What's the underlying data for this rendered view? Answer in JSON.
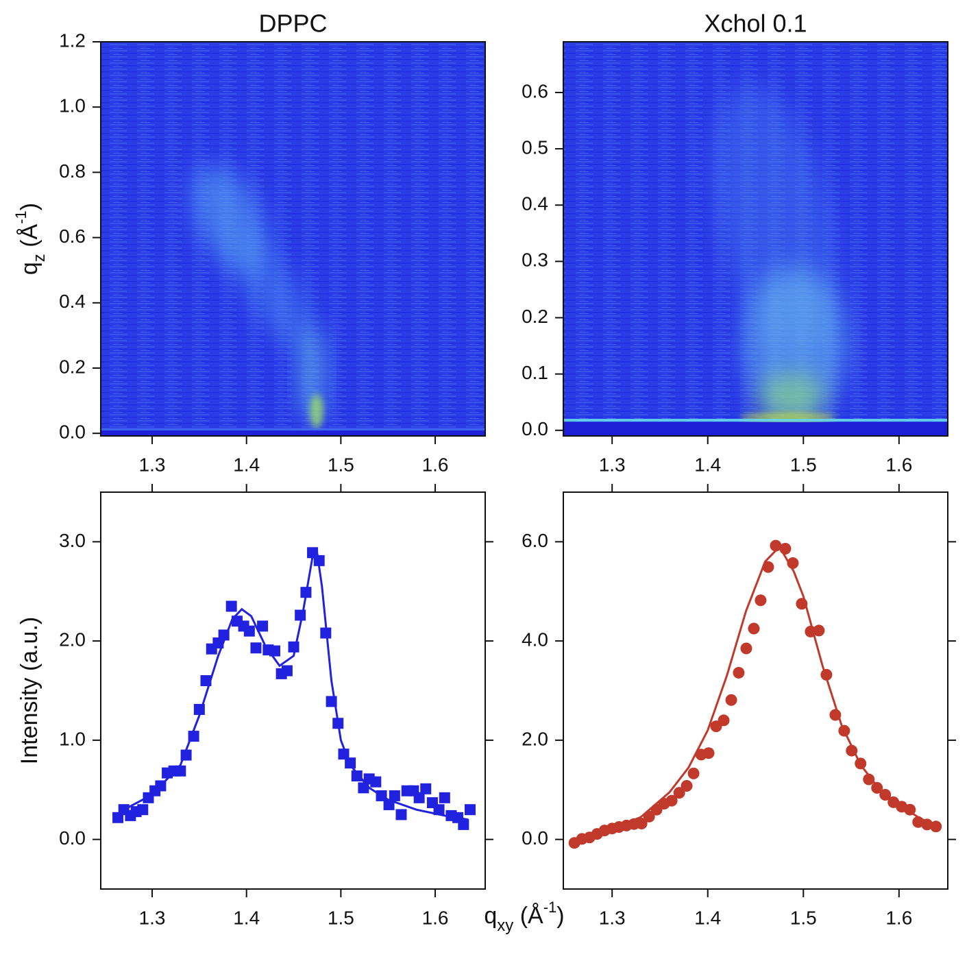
{
  "chart_data": [
    {
      "type": "heatmap",
      "title": "DPPC",
      "y_label": [
        {
          "text": "q"
        },
        {
          "text": "z",
          "shift": "sub"
        },
        {
          "text": " (Å"
        },
        {
          "text": "-1",
          "shift": "super"
        },
        {
          "text": ")"
        }
      ],
      "xlim": [
        1.2455,
        1.653
      ],
      "xticks": [
        1.3,
        1.4,
        1.5,
        1.6
      ],
      "ylim": [
        -0.008,
        1.2
      ],
      "yticks": [
        {
          "value": 0,
          "label": "0.0"
        },
        0.2,
        0.4,
        0.6,
        0.8,
        {
          "value": 1,
          "label": "1.0"
        },
        1.2
      ]
    },
    {
      "type": "heatmap",
      "title": "Xchol 0.1",
      "xlim": [
        1.249,
        1.651
      ],
      "xticks": [
        1.3,
        1.4,
        1.5,
        1.6
      ],
      "ylim": [
        -0.01,
        0.69
      ],
      "yticks": [
        {
          "value": 0,
          "label": "0.0"
        },
        0.1,
        0.2,
        0.3,
        0.4,
        0.5,
        0.6
      ]
    },
    {
      "type": "scatter",
      "mirror": true,
      "y_label": [
        {
          "text": "Intensity (a.u.)"
        }
      ],
      "x_label": [
        {
          "text": "q"
        },
        {
          "text": "xy",
          "shift": "sub"
        },
        {
          "text": " (Å"
        },
        {
          "text": "-1",
          "shift": "super"
        },
        {
          "text": ")"
        }
      ],
      "xlim": [
        1.2455,
        1.653
      ],
      "xticks": [
        1.3,
        1.4,
        1.5,
        1.6
      ],
      "ylim": [
        -0.5,
        3.5
      ],
      "yticks": [
        {
          "value": 0,
          "label": "0.0"
        },
        {
          "value": 1,
          "label": "1.0"
        },
        {
          "value": 2,
          "label": "2.0"
        },
        {
          "value": 3,
          "label": "3.0"
        }
      ],
      "points": {
        "marker": "square",
        "color": "#2121e0",
        "x": [
          1.2637,
          1.27,
          1.277,
          1.283,
          1.29,
          1.296,
          1.303,
          1.309,
          1.316,
          1.323,
          1.33,
          1.336,
          1.344,
          1.35,
          1.357,
          1.363,
          1.37,
          1.376,
          1.384,
          1.39,
          1.397,
          1.403,
          1.41,
          1.417,
          1.423,
          1.43,
          1.437,
          1.443,
          1.45,
          1.457,
          1.463,
          1.47,
          1.477,
          1.484,
          1.49,
          1.497,
          1.503,
          1.51,
          1.517,
          1.524,
          1.53,
          1.537,
          1.543,
          1.551,
          1.557,
          1.564,
          1.57,
          1.577,
          1.583,
          1.59,
          1.597,
          1.604,
          1.61,
          1.617,
          1.624,
          1.63,
          1.637
        ],
        "values": [
          0.22,
          0.3,
          0.24,
          0.28,
          0.3,
          0.42,
          0.49,
          0.54,
          0.67,
          0.69,
          0.69,
          0.85,
          1.04,
          1.31,
          1.6,
          1.92,
          1.98,
          2.06,
          2.35,
          2.2,
          2.15,
          2.1,
          1.93,
          2.15,
          1.91,
          1.9,
          1.67,
          1.7,
          1.94,
          2.26,
          2.49,
          2.89,
          2.81,
          2.08,
          1.39,
          1.17,
          0.86,
          0.77,
          0.64,
          0.52,
          0.61,
          0.58,
          0.44,
          0.35,
          0.44,
          0.25,
          0.49,
          0.49,
          0.42,
          0.51,
          0.37,
          0.3,
          0.42,
          0.24,
          0.22,
          0.15,
          0.3
        ]
      },
      "fit": {
        "color": "#2121e0",
        "x": [
          1.27,
          1.3,
          1.33,
          1.35,
          1.37,
          1.385,
          1.395,
          1.405,
          1.42,
          1.435,
          1.45,
          1.46,
          1.47,
          1.475,
          1.48,
          1.49,
          1.5,
          1.51,
          1.53,
          1.55,
          1.58,
          1.61,
          1.635
        ],
        "values": [
          0.3,
          0.45,
          0.75,
          1.25,
          1.85,
          2.22,
          2.32,
          2.25,
          1.95,
          1.75,
          1.85,
          2.3,
          2.85,
          2.88,
          2.55,
          1.6,
          1.0,
          0.75,
          0.52,
          0.4,
          0.3,
          0.24,
          0.2
        ]
      }
    },
    {
      "type": "scatter",
      "mirror": true,
      "xlim": [
        1.249,
        1.651
      ],
      "xticks": [
        1.3,
        1.4,
        1.5,
        1.6
      ],
      "ylim": [
        -1,
        7
      ],
      "yticks": [
        {
          "value": 0,
          "label": "0.0"
        },
        {
          "value": 2,
          "label": "2.0"
        },
        {
          "value": 4,
          "label": "4.0"
        },
        {
          "value": 6,
          "label": "6.0"
        }
      ],
      "points": {
        "marker": "circle",
        "color": "#c0392b",
        "x": [
          1.2606,
          1.2685,
          1.2764,
          1.2843,
          1.2921,
          1.3,
          1.3072,
          1.315,
          1.3229,
          1.3308,
          1.3387,
          1.3465,
          1.3544,
          1.3623,
          1.3702,
          1.378,
          1.3852,
          1.3931,
          1.4009,
          1.4088,
          1.4167,
          1.4246,
          1.4324,
          1.4403,
          1.4482,
          1.4553,
          1.4632,
          1.4711,
          1.4811,
          1.489,
          1.4983,
          1.5076,
          1.5162,
          1.5241,
          1.5334,
          1.5427,
          1.5505,
          1.5598,
          1.5684,
          1.577,
          1.5856,
          1.5942,
          1.6028,
          1.6114,
          1.62,
          1.6293,
          1.6386
        ],
        "values": [
          -0.07,
          0.01,
          0.04,
          0.11,
          0.18,
          0.22,
          0.25,
          0.28,
          0.31,
          0.32,
          0.46,
          0.6,
          0.72,
          0.78,
          0.94,
          1.08,
          1.33,
          1.71,
          1.74,
          2.28,
          2.4,
          2.81,
          3.36,
          3.85,
          4.25,
          4.82,
          5.49,
          5.92,
          5.86,
          5.57,
          4.75,
          4.19,
          4.21,
          3.32,
          2.51,
          2.19,
          1.79,
          1.53,
          1.21,
          1.04,
          0.9,
          0.75,
          0.66,
          0.6,
          0.35,
          0.3,
          0.26
        ]
      },
      "fit": {
        "color": "#c0392b",
        "x": [
          1.26,
          1.3,
          1.33,
          1.36,
          1.38,
          1.4,
          1.42,
          1.44,
          1.46,
          1.475,
          1.49,
          1.5,
          1.52,
          1.54,
          1.56,
          1.58,
          1.6,
          1.62,
          1.635
        ],
        "values": [
          -0.05,
          0.22,
          0.45,
          0.95,
          1.45,
          2.2,
          3.3,
          4.6,
          5.6,
          5.9,
          5.4,
          4.9,
          3.5,
          2.3,
          1.5,
          1.0,
          0.7,
          0.45,
          0.3
        ]
      }
    }
  ]
}
